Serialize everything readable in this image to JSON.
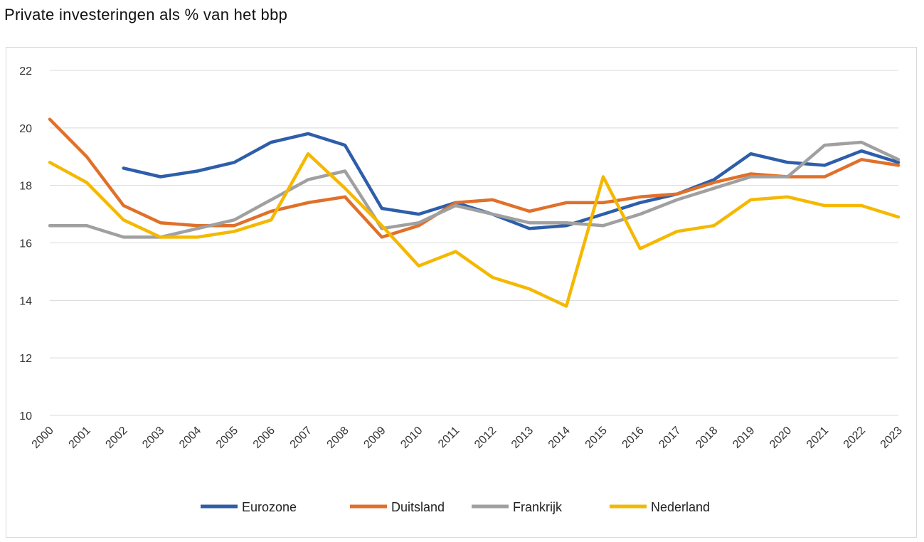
{
  "title": "Private investeringen als % van het bbp",
  "chart_data": {
    "type": "line",
    "title": "Private investeringen als % van het bbp",
    "xlabel": "",
    "ylabel": "",
    "ylim": [
      10,
      22
    ],
    "yticks": [
      10,
      12,
      14,
      16,
      18,
      20,
      22
    ],
    "grid": true,
    "legend_position": "bottom",
    "categories": [
      "2000",
      "2001",
      "2002",
      "2003",
      "2004",
      "2005",
      "2006",
      "2007",
      "2008",
      "2009",
      "2010",
      "2011",
      "2012",
      "2013",
      "2014",
      "2015",
      "2016",
      "2017",
      "2018",
      "2019",
      "2020",
      "2021",
      "2022",
      "2023"
    ],
    "series": [
      {
        "name": "Eurozone",
        "color": "#2E5EAA",
        "values": [
          null,
          null,
          18.6,
          18.3,
          18.5,
          18.8,
          19.5,
          19.8,
          19.4,
          17.2,
          17.0,
          17.4,
          17.0,
          16.5,
          16.6,
          17.0,
          17.4,
          17.7,
          18.2,
          19.1,
          18.8,
          18.7,
          19.2,
          18.8
        ]
      },
      {
        "name": "Duitsland",
        "color": "#E0702A",
        "values": [
          20.3,
          19.0,
          17.3,
          16.7,
          16.6,
          16.6,
          17.1,
          17.4,
          17.6,
          16.2,
          16.6,
          17.4,
          17.5,
          17.1,
          17.4,
          17.4,
          17.6,
          17.7,
          18.1,
          18.4,
          18.3,
          18.3,
          18.9,
          18.7
        ]
      },
      {
        "name": "Frankrijk",
        "color": "#A0A0A0",
        "values": [
          16.6,
          16.6,
          16.2,
          16.2,
          16.5,
          16.8,
          17.5,
          18.2,
          18.5,
          16.5,
          16.7,
          17.3,
          17.0,
          16.7,
          16.7,
          16.6,
          17.0,
          17.5,
          17.9,
          18.3,
          18.3,
          19.4,
          19.5,
          18.9
        ]
      },
      {
        "name": "Nederland",
        "color": "#F5B800",
        "values": [
          18.8,
          18.1,
          16.8,
          16.2,
          16.2,
          16.4,
          16.8,
          19.1,
          17.9,
          16.6,
          15.2,
          15.7,
          14.8,
          14.4,
          13.8,
          18.3,
          15.8,
          16.4,
          16.6,
          17.5,
          17.6,
          17.3,
          17.3,
          16.9
        ]
      }
    ]
  }
}
